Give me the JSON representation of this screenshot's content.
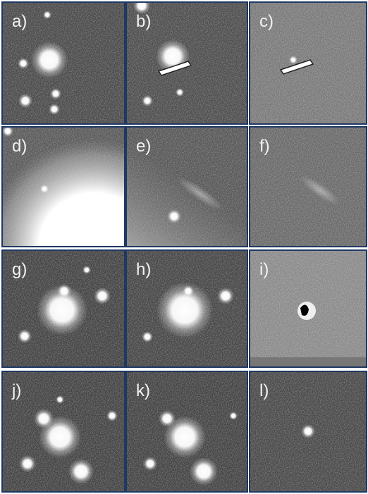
{
  "panels": [
    {
      "label": "a)"
    },
    {
      "label": "b)"
    },
    {
      "label": "c)"
    },
    {
      "label": "d)"
    },
    {
      "label": "e)"
    },
    {
      "label": "f)"
    },
    {
      "label": "g)"
    },
    {
      "label": "h)"
    },
    {
      "label": "i)"
    },
    {
      "label": "j)"
    },
    {
      "label": "k)"
    },
    {
      "label": "l)"
    }
  ]
}
